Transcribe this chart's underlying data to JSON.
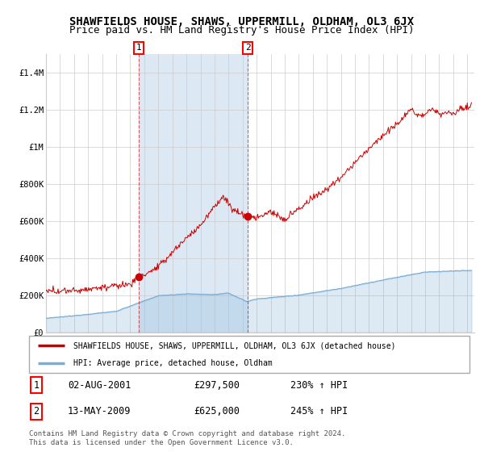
{
  "title": "SHAWFIELDS HOUSE, SHAWS, UPPERMILL, OLDHAM, OL3 6JX",
  "subtitle": "Price paid vs. HM Land Registry's House Price Index (HPI)",
  "ylim": [
    0,
    1500000
  ],
  "yticks": [
    0,
    200000,
    400000,
    600000,
    800000,
    1000000,
    1200000,
    1400000
  ],
  "ytick_labels": [
    "£0",
    "£200K",
    "£400K",
    "£600K",
    "£800K",
    "£1M",
    "£1.2M",
    "£1.4M"
  ],
  "xlim_start": 1995,
  "xlim_end": 2025.5,
  "xticks": [
    1995,
    1996,
    1997,
    1998,
    1999,
    2000,
    2001,
    2002,
    2003,
    2004,
    2005,
    2006,
    2007,
    2008,
    2009,
    2010,
    2011,
    2012,
    2013,
    2014,
    2015,
    2016,
    2017,
    2018,
    2019,
    2020,
    2021,
    2022,
    2023,
    2024,
    2025
  ],
  "sale1_x": 2001.6,
  "sale1_y": 297500,
  "sale1_label": "1",
  "sale2_x": 2009.37,
  "sale2_y": 625000,
  "sale2_label": "2",
  "sale1_date": "02-AUG-2001",
  "sale1_price": "£297,500",
  "sale1_hpi": "230% ↑ HPI",
  "sale2_date": "13-MAY-2009",
  "sale2_price": "£625,000",
  "sale2_hpi": "245% ↑ HPI",
  "red_line_color": "#cc0000",
  "blue_line_color": "#7aaed6",
  "blue_fill_color": "#dce9f5",
  "bg_color": "#ffffff",
  "grid_color": "#cccccc",
  "legend_label_red": "SHAWFIELDS HOUSE, SHAWS, UPPERMILL, OLDHAM, OL3 6JX (detached house)",
  "legend_label_blue": "HPI: Average price, detached house, Oldham",
  "footer": "Contains HM Land Registry data © Crown copyright and database right 2024.\nThis data is licensed under the Open Government Licence v3.0.",
  "title_fontsize": 10,
  "subtitle_fontsize": 9
}
